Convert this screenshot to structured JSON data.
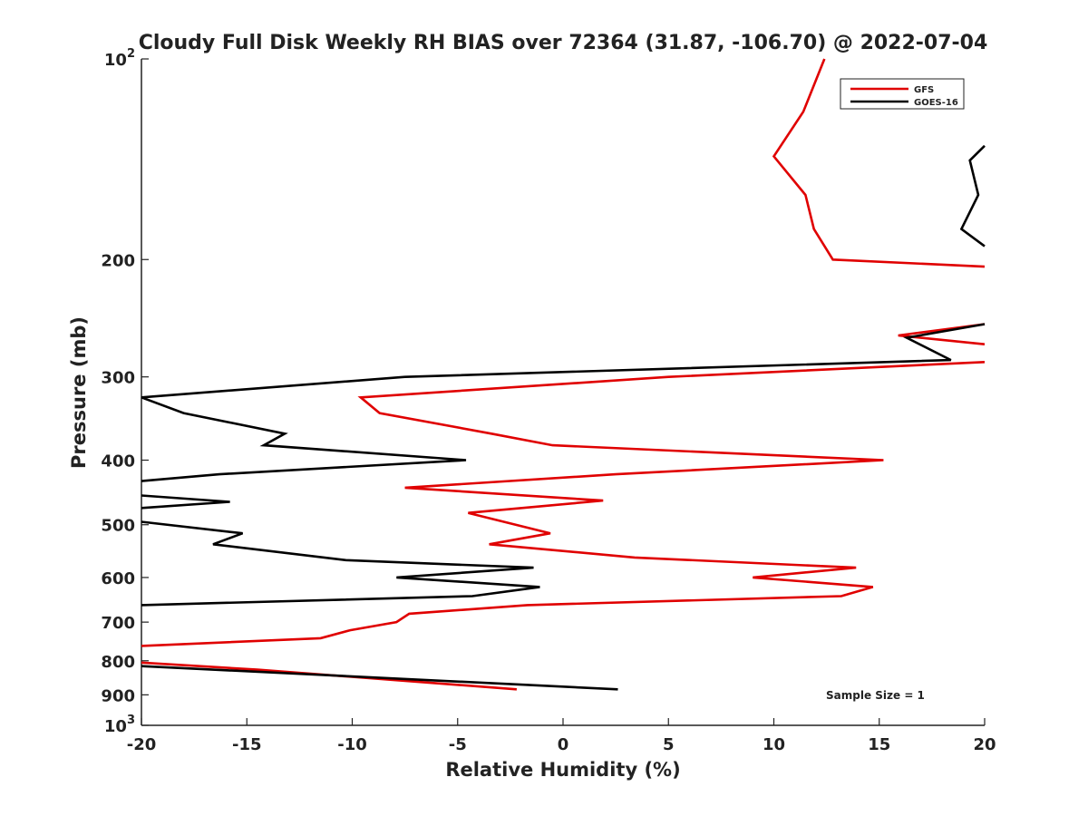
{
  "chart_data": {
    "type": "line",
    "title": "Cloudy Full Disk Weekly RH BIAS over 72364 (31.87, -106.70) @ 2022-07-04",
    "xlabel": "Relative Humidity (%)",
    "ylabel": "Pressure (mb)",
    "xlim": [
      -20,
      20
    ],
    "ylim": [
      100,
      1000
    ],
    "yscale": "log",
    "y_reversed": true,
    "grid": false,
    "legend_position": "top-right",
    "x_ticks": [
      "-20",
      "-15",
      "-10",
      "-5",
      "0",
      "5",
      "10",
      "15",
      "20"
    ],
    "y_ticks": [
      {
        "value": 100,
        "label": "10",
        "sup": "2"
      },
      {
        "value": 200,
        "label": "200",
        "sup": ""
      },
      {
        "value": 300,
        "label": "300",
        "sup": ""
      },
      {
        "value": 400,
        "label": "400",
        "sup": ""
      },
      {
        "value": 500,
        "label": "500",
        "sup": ""
      },
      {
        "value": 600,
        "label": "600",
        "sup": ""
      },
      {
        "value": 700,
        "label": "700",
        "sup": ""
      },
      {
        "value": 800,
        "label": "800",
        "sup": ""
      },
      {
        "value": 900,
        "label": "900",
        "sup": ""
      },
      {
        "value": 1000,
        "label": "10",
        "sup": "3"
      }
    ],
    "annotation": "Sample Size = 1",
    "series": [
      {
        "name": "GFS",
        "color": "#e00000",
        "points": [
          [
            12.4,
            100
          ],
          [
            11.4,
            120
          ],
          [
            10.0,
            140
          ],
          [
            11.5,
            160
          ],
          [
            11.9,
            180
          ],
          [
            12.8,
            200
          ],
          [
            20.0,
            205
          ],
          [
            null,
            null
          ],
          [
            20.0,
            250
          ],
          [
            15.9,
            260
          ],
          [
            20.0,
            268
          ],
          [
            null,
            null
          ],
          [
            20.0,
            285
          ],
          [
            5.0,
            300
          ],
          [
            -9.6,
            322
          ],
          [
            -8.7,
            340
          ],
          [
            -3.4,
            365
          ],
          [
            -0.5,
            380
          ],
          [
            15.2,
            400
          ],
          [
            2.5,
            420
          ],
          [
            -7.5,
            440
          ],
          [
            1.9,
            460
          ],
          [
            -4.5,
            480
          ],
          [
            -0.6,
            515
          ],
          [
            -3.5,
            535
          ],
          [
            3.4,
            560
          ],
          [
            13.9,
            580
          ],
          [
            9.0,
            600
          ],
          [
            14.7,
            620
          ],
          [
            13.2,
            640
          ],
          [
            -1.7,
            660
          ],
          [
            -7.3,
            680
          ],
          [
            -7.9,
            700
          ],
          [
            -10.1,
            720
          ],
          [
            -11.5,
            740
          ],
          [
            -20.0,
            760
          ],
          [
            null,
            null
          ],
          [
            -20.0,
            805
          ],
          [
            -14.5,
            825
          ],
          [
            -2.2,
            883
          ]
        ]
      },
      {
        "name": "GOES-16",
        "color": "#000000",
        "points": [
          [
            20.0,
            135
          ],
          [
            19.3,
            142
          ],
          [
            19.7,
            160
          ],
          [
            18.9,
            180
          ],
          [
            20.0,
            191
          ],
          [
            null,
            null
          ],
          [
            20.0,
            250
          ],
          [
            16.3,
            262
          ],
          [
            18.4,
            283
          ],
          [
            -7.5,
            300
          ],
          [
            -20.0,
            322
          ],
          [
            -18.0,
            340
          ],
          [
            -13.2,
            365
          ],
          [
            -14.2,
            380
          ],
          [
            -4.6,
            400
          ],
          [
            -16.3,
            420
          ],
          [
            -20.0,
            430
          ],
          [
            null,
            null
          ],
          [
            -20.0,
            452
          ],
          [
            -15.8,
            462
          ],
          [
            -20.0,
            472
          ],
          [
            null,
            null
          ],
          [
            -20.0,
            495
          ],
          [
            -15.2,
            515
          ],
          [
            -16.6,
            535
          ],
          [
            -10.3,
            565
          ],
          [
            -1.4,
            580
          ],
          [
            -7.9,
            600
          ],
          [
            -1.1,
            620
          ],
          [
            -4.3,
            640
          ],
          [
            -20.0,
            660
          ],
          [
            null,
            null
          ],
          [
            -20.0,
            815
          ],
          [
            2.6,
            883
          ]
        ]
      }
    ]
  }
}
